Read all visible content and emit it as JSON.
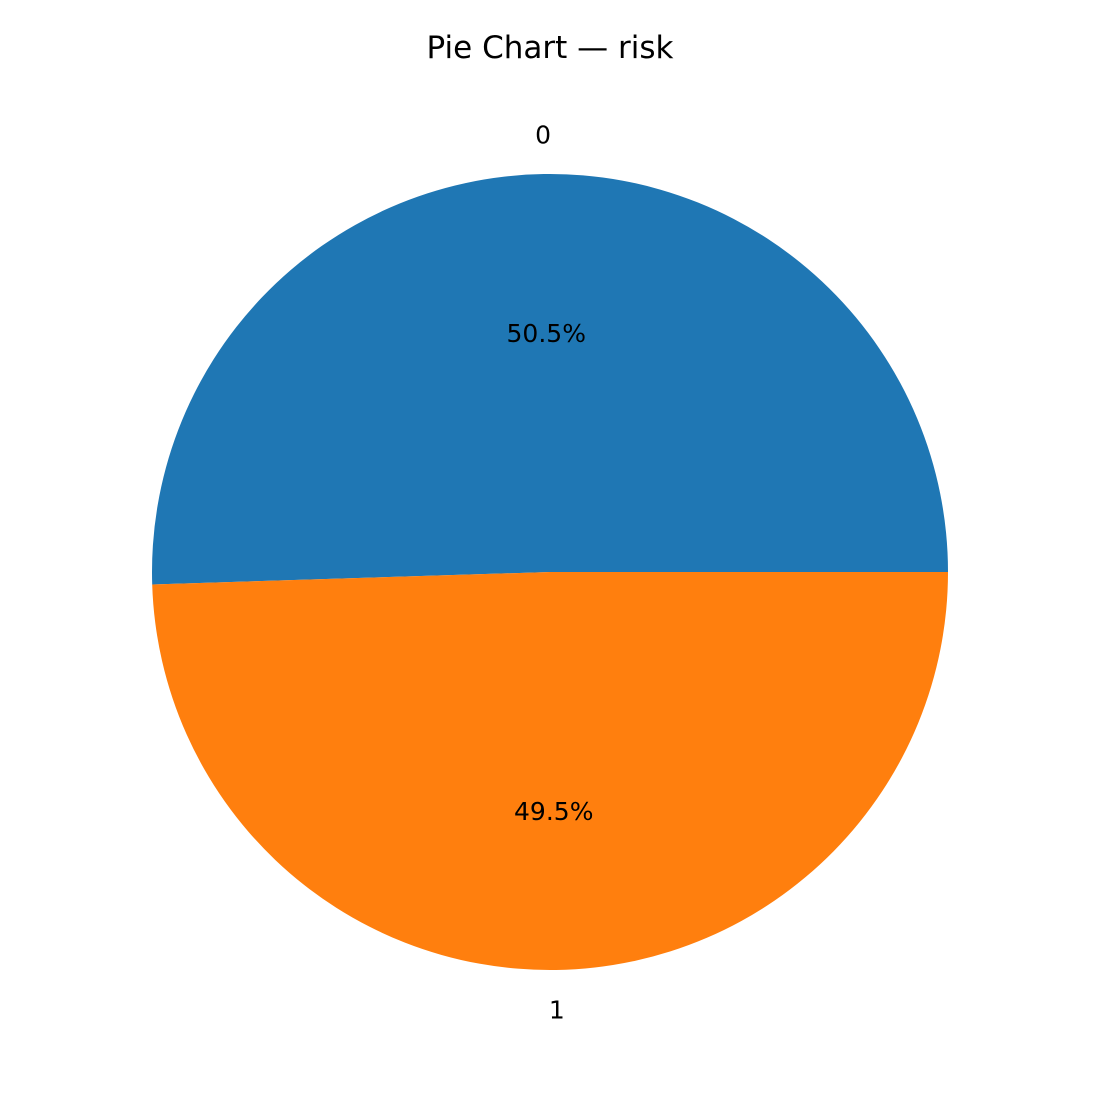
{
  "chart_data": {
    "type": "pie",
    "title": "Pie Chart — risk",
    "categories": [
      "0",
      "1"
    ],
    "values": [
      50.5,
      49.5
    ],
    "value_labels": [
      "50.5%",
      "49.5%"
    ],
    "colors": [
      "#1f77b4",
      "#ff7f0e"
    ],
    "start_angle_deg": 0,
    "direction": "counterclockwise",
    "legend": "none"
  }
}
